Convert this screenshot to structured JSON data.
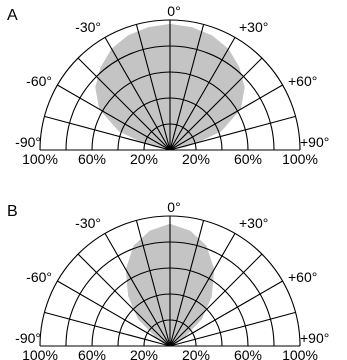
{
  "chart_data": [
    {
      "type": "polar-area",
      "panel_label": "A",
      "angle_labels": [
        "-90°",
        "-60°",
        "-30°",
        "0°",
        "+30°",
        "+60°",
        "+90°"
      ],
      "angle_ticks_deg": [
        -90,
        -60,
        -30,
        0,
        30,
        60,
        90
      ],
      "radial_tick_labels": [
        "100%",
        "60%",
        "20%",
        "20%",
        "60%",
        "100%"
      ],
      "radial_range_percent": [
        0,
        100
      ],
      "radial_rings_percent": [
        20,
        40,
        60,
        80,
        100
      ],
      "spoke_step_deg": 15,
      "grid": true,
      "series": [
        {
          "angle_deg": [
            -90,
            -80,
            -75,
            -70,
            -60,
            -50,
            -40,
            -30,
            -20,
            -10,
            0,
            10,
            20,
            30,
            40,
            50,
            60,
            70,
            75,
            80,
            90
          ],
          "relative_intensity_percent": [
            0,
            12,
            22,
            42,
            63,
            75,
            83,
            90,
            94,
            96,
            97,
            96,
            94,
            90,
            83,
            75,
            63,
            42,
            22,
            12,
            0
          ],
          "fill": "#c4c4c4"
        }
      ]
    },
    {
      "type": "polar-area",
      "panel_label": "B",
      "angle_labels": [
        "-90°",
        "-60°",
        "-30°",
        "0°",
        "+30°",
        "+60°",
        "+90°"
      ],
      "angle_ticks_deg": [
        -90,
        -60,
        -30,
        0,
        30,
        60,
        90
      ],
      "radial_tick_labels": [
        "100%",
        "60%",
        "20%",
        "20%",
        "60%",
        "100%"
      ],
      "radial_range_percent": [
        0,
        100
      ],
      "radial_rings_percent": [
        20,
        40,
        60,
        80,
        100
      ],
      "spoke_step_deg": 15,
      "grid": true,
      "series": [
        {
          "angle_deg": [
            -90,
            -70,
            -60,
            -50,
            -40,
            -30,
            -20,
            -10,
            0,
            10,
            20,
            30,
            40,
            50,
            60,
            70,
            90
          ],
          "relative_intensity_percent": [
            0,
            5,
            12,
            32,
            50,
            68,
            82,
            90,
            94,
            90,
            82,
            68,
            50,
            32,
            12,
            5,
            0
          ],
          "fill": "#c4c4c4"
        }
      ]
    }
  ]
}
